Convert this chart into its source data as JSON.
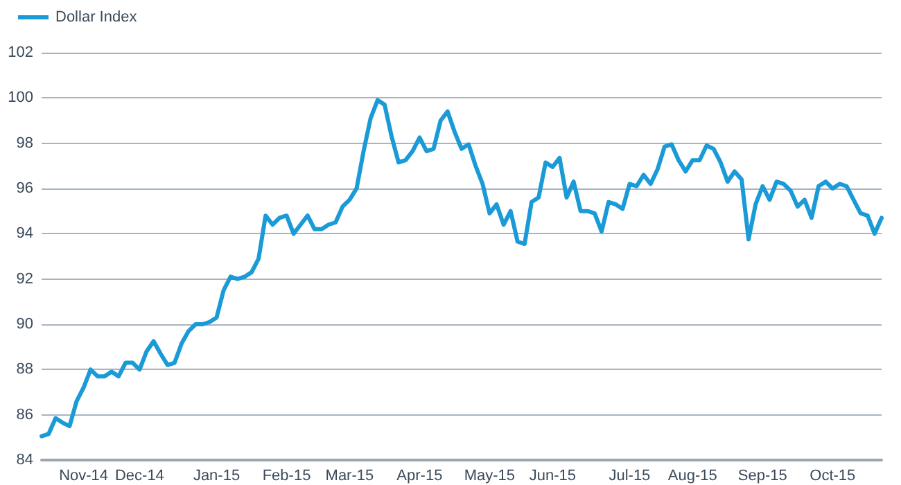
{
  "chart_data": {
    "type": "line",
    "categories": [
      null,
      null,
      null,
      null,
      null,
      null,
      "Nov-14",
      null,
      null,
      null,
      null,
      null,
      null,
      null,
      "Dec-14",
      null,
      null,
      null,
      null,
      null,
      null,
      null,
      null,
      null,
      null,
      "Jan-15",
      null,
      null,
      null,
      null,
      null,
      null,
      null,
      null,
      null,
      "Feb-15",
      null,
      null,
      null,
      null,
      null,
      null,
      null,
      null,
      "Mar-15",
      null,
      null,
      null,
      null,
      null,
      null,
      null,
      null,
      null,
      "Apr-15",
      null,
      null,
      null,
      null,
      null,
      null,
      null,
      null,
      null,
      "May-15",
      null,
      null,
      null,
      null,
      null,
      null,
      null,
      null,
      "Jun-15",
      null,
      null,
      null,
      null,
      null,
      null,
      null,
      null,
      null,
      null,
      "Jul-15",
      null,
      null,
      null,
      null,
      null,
      null,
      null,
      null,
      "Aug-15",
      null,
      null,
      null,
      null,
      null,
      null,
      null,
      null,
      null,
      "Sep-15",
      null,
      null,
      null,
      null,
      null,
      null,
      null,
      null,
      null,
      "Oct-15",
      null,
      null,
      null,
      null,
      null,
      null,
      null
    ],
    "series": [
      {
        "name": "Dollar Index",
        "color": "#1a9ad6",
        "values": [
          85.05,
          85.15,
          85.85,
          85.65,
          85.5,
          86.6,
          87.2,
          88.0,
          87.7,
          87.7,
          87.9,
          87.7,
          88.3,
          88.3,
          88.0,
          88.8,
          89.25,
          88.7,
          88.2,
          88.3,
          89.15,
          89.7,
          90.0,
          90.0,
          90.1,
          90.3,
          91.5,
          92.1,
          92.0,
          92.1,
          92.3,
          92.9,
          94.8,
          94.4,
          94.7,
          94.8,
          94.0,
          94.4,
          94.8,
          94.2,
          94.2,
          94.4,
          94.5,
          95.2,
          95.5,
          96.0,
          97.65,
          99.1,
          99.9,
          99.7,
          98.3,
          97.15,
          97.25,
          97.65,
          98.25,
          97.65,
          97.75,
          99.0,
          99.4,
          98.5,
          97.75,
          97.95,
          97.0,
          96.2,
          94.9,
          95.3,
          94.4,
          95.0,
          93.65,
          93.55,
          95.4,
          95.6,
          97.15,
          96.95,
          97.35,
          95.6,
          96.3,
          95.0,
          95.0,
          94.9,
          94.1,
          95.4,
          95.3,
          95.1,
          96.2,
          96.1,
          96.6,
          96.2,
          96.85,
          97.85,
          97.95,
          97.25,
          96.75,
          97.25,
          97.25,
          97.9,
          97.75,
          97.15,
          96.3,
          96.75,
          96.4,
          93.75,
          95.3,
          96.1,
          95.5,
          96.3,
          96.2,
          95.9,
          95.2,
          95.5,
          94.7,
          96.1,
          96.3,
          96.0,
          96.2,
          96.1,
          95.5,
          94.9,
          94.8,
          94.0,
          94.7
        ]
      }
    ],
    "ylim": [
      84,
      102
    ],
    "yticks": [
      84,
      86,
      88,
      90,
      92,
      94,
      96,
      98,
      100,
      102
    ],
    "grid": "y",
    "legend": "top left",
    "marker": "none",
    "line_style": "solid"
  }
}
